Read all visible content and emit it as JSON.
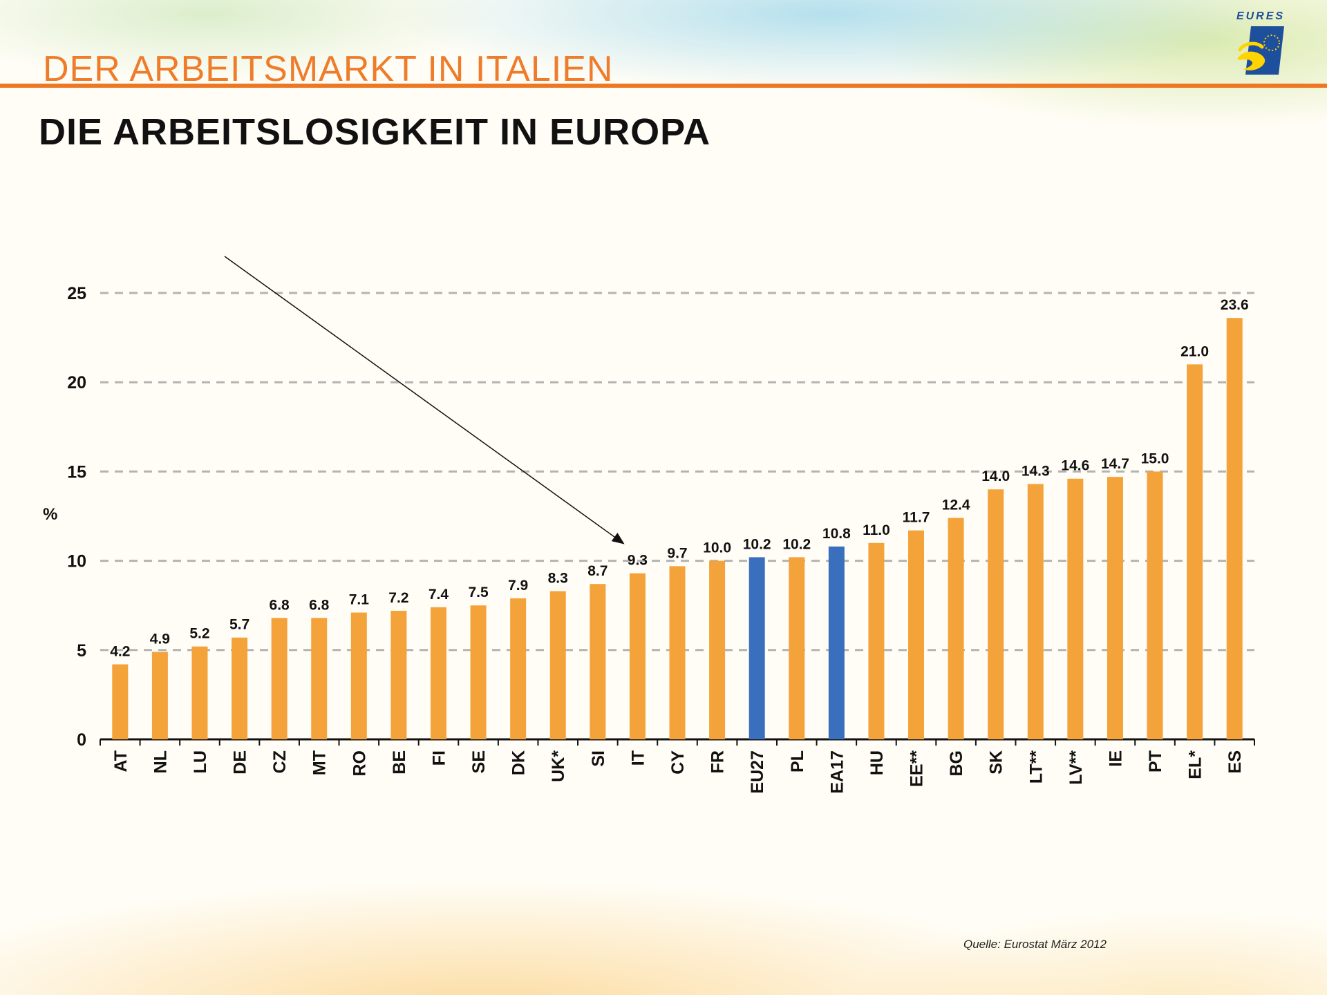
{
  "header": {
    "section_title": "DER ARBEITSMARKT IN ITALIEN",
    "slide_title": "DIE ARBEITSLOSIGKEIT IN EUROPA"
  },
  "logo": {
    "text": "EURES",
    "icon": "eures-logo"
  },
  "source": "Quelle: Eurostat März 2012",
  "colors": {
    "bar": "#f4a23a",
    "highlight": "#3a6fbe",
    "header_line": "#ee7724",
    "header_title": "#ee7c2a"
  },
  "chart_data": {
    "type": "bar",
    "title": "",
    "xlabel": "",
    "ylabel": "%",
    "ylim": [
      0,
      25
    ],
    "yticks": [
      0,
      5,
      10,
      15,
      20,
      25
    ],
    "grid": true,
    "categories": [
      "AT",
      "NL",
      "LU",
      "DE",
      "CZ",
      "MT",
      "RO",
      "BE",
      "FI",
      "SE",
      "DK",
      "UK*",
      "SI",
      "IT",
      "CY",
      "FR",
      "EU27",
      "PL",
      "EA17",
      "HU",
      "EE**",
      "BG",
      "SK",
      "LT**",
      "LV**",
      "IE",
      "PT",
      "EL*",
      "ES"
    ],
    "values": [
      4.2,
      4.9,
      5.2,
      5.7,
      6.8,
      6.8,
      7.1,
      7.2,
      7.4,
      7.5,
      7.9,
      8.3,
      8.7,
      9.3,
      9.7,
      10.0,
      10.2,
      10.2,
      10.8,
      11.0,
      11.7,
      12.4,
      14.0,
      14.3,
      14.6,
      14.7,
      15.0,
      21.0,
      23.6
    ],
    "value_labels": [
      "4.2",
      "4.9",
      "5.2",
      "5.7",
      "6.8",
      "6.8",
      "7.1",
      "7.2",
      "7.4",
      "7.5",
      "7.9",
      "8.3",
      "8.7",
      "9.3",
      "9.7",
      "10.0",
      "10.2",
      "10.2",
      "10.8",
      "11.0",
      "11.7",
      "12.4",
      "14.0",
      "14.3",
      "14.6",
      "14.7",
      "15.0",
      "21.0",
      "23.6"
    ],
    "highlighted": [
      "EU27",
      "EA17"
    ],
    "annotation": {
      "type": "arrow",
      "points_to": "IT"
    }
  }
}
